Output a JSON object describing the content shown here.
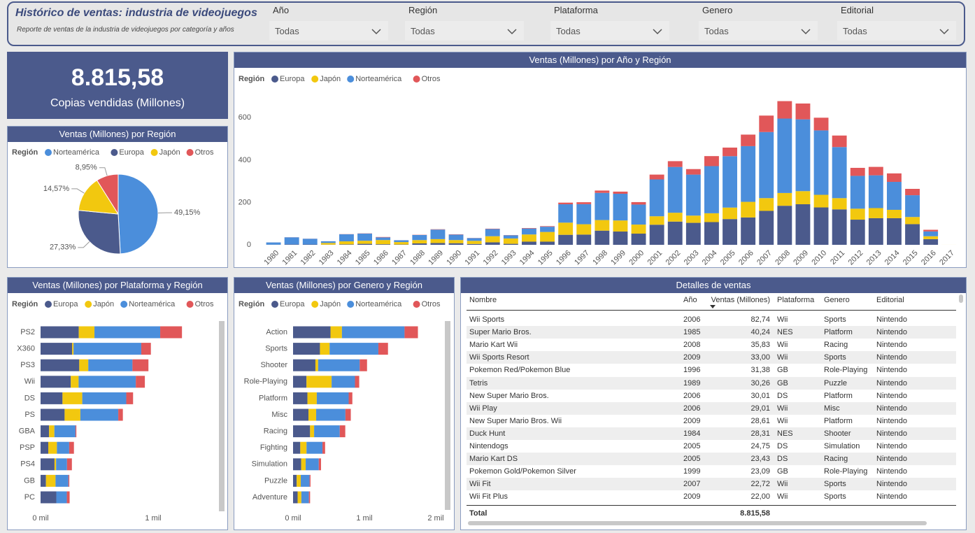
{
  "header": {
    "title": "Histórico de ventas: industria de videojuegos",
    "subtitle": "Reporte de ventas de la industria de videojuegos por categoría y años"
  },
  "filters": [
    {
      "label": "Año",
      "value": "Todas"
    },
    {
      "label": "Región",
      "value": "Todas"
    },
    {
      "label": "Plataforma",
      "value": "Todas"
    },
    {
      "label": "Genero",
      "value": "Todas"
    },
    {
      "label": "Editorial",
      "value": "Todas"
    }
  ],
  "kpi": {
    "value": "8.815,58",
    "label": "Copias vendidas (Millones)"
  },
  "chart_data": [
    {
      "type": "pie",
      "title": "Ventas (Millones) por Región",
      "legend_title": "Región",
      "categories": [
        "Norteamérica",
        "Europa",
        "Japón",
        "Otros"
      ],
      "values": [
        49.15,
        27.33,
        14.57,
        8.95
      ],
      "value_labels": [
        "49,15%",
        "27,33%",
        "14,57%",
        "8,95%"
      ],
      "colors": [
        "#4b8edb",
        "#4b5a8c",
        "#f2c80f",
        "#e15759"
      ]
    },
    {
      "type": "bar",
      "title": "Ventas (Millones) por Año y Región",
      "legend_title": "Región",
      "stacked": true,
      "grid": false,
      "categories": [
        "1980",
        "1981",
        "1982",
        "1983",
        "1984",
        "1985",
        "1986",
        "1987",
        "1988",
        "1989",
        "1990",
        "1991",
        "1992",
        "1993",
        "1994",
        "1995",
        "1996",
        "1997",
        "1998",
        "1999",
        "2000",
        "2001",
        "2002",
        "2003",
        "2004",
        "2005",
        "2006",
        "2007",
        "2008",
        "2009",
        "2010",
        "2011",
        "2012",
        "2013",
        "2014",
        "2015",
        "2016",
        "2017"
      ],
      "series": [
        {
          "name": "Europa",
          "color": "#4b5a8c",
          "values": [
            0.7,
            2.0,
            1.7,
            0.8,
            2.1,
            4.7,
            2.8,
            1.4,
            6.6,
            8.4,
            7.6,
            4.0,
            11.7,
            4.7,
            14.9,
            14.9,
            47.3,
            48.3,
            66.9,
            62.7,
            52.8,
            94.9,
            109.7,
            103.8,
            107.3,
            121.6,
            129.2,
            160.2,
            184.4,
            191.6,
            176.6,
            167.4,
            118.8,
            125.8,
            125.7,
            97.7,
            26.8,
            0
          ]
        },
        {
          "name": "Japón",
          "color": "#f2c80f",
          "values": [
            0,
            0,
            0,
            8.1,
            14.3,
            14.6,
            19.8,
            11.6,
            15.8,
            18.4,
            14.9,
            14.8,
            28.9,
            25.3,
            34.0,
            45.8,
            57.4,
            48.9,
            50.0,
            52.3,
            42.8,
            39.9,
            41.8,
            34.2,
            41.7,
            54.3,
            73.7,
            60.3,
            60.3,
            61.9,
            59.5,
            53.0,
            51.8,
            47.6,
            39.5,
            33.7,
            13.7,
            0.1
          ]
        },
        {
          "name": "Norteamérica",
          "color": "#4b8edb",
          "values": [
            10.6,
            33.4,
            26.9,
            7.8,
            33.3,
            33.7,
            12.5,
            8.5,
            23.9,
            45.2,
            25.5,
            12.8,
            33.9,
            15.1,
            28.2,
            24.8,
            86.8,
            94.8,
            128.4,
            126.1,
            94.5,
            174.0,
            216.2,
            193.6,
            222.6,
            242.6,
            263.1,
            312.1,
            351.4,
            338.9,
            304.2,
            241.2,
            155.0,
            154.8,
            132.0,
            102.8,
            22.7,
            0
          ]
        },
        {
          "name": "Otros",
          "color": "#e15759",
          "values": [
            0.1,
            0.3,
            0.3,
            0.1,
            0.7,
            0.9,
            1.9,
            0.2,
            1.0,
            1.5,
            1.4,
            0.7,
            1.7,
            0.9,
            2.2,
            2.6,
            7.7,
            9.1,
            11.0,
            10.1,
            11.6,
            22.8,
            27.3,
            26.0,
            47.3,
            40.6,
            54.4,
            77.6,
            82.4,
            74.8,
            59.9,
            54.4,
            37.8,
            39.8,
            40.0,
            30.0,
            7.8,
            0
          ]
        }
      ],
      "ylim": [
        0,
        720
      ],
      "yticks": [
        0,
        200,
        400,
        600
      ]
    },
    {
      "type": "barh",
      "title": "Ventas (Millones) por Plataforma y Región",
      "legend_title": "Región",
      "stacked": true,
      "categories": [
        "PS2",
        "X360",
        "PS3",
        "Wii",
        "DS",
        "PS",
        "GBA",
        "PSP",
        "PS4",
        "GB",
        "PC"
      ],
      "series": [
        {
          "name": "Europa",
          "color": "#4b5a8c",
          "values": [
            339.3,
            280.6,
            343.7,
            268.4,
            194.7,
            213.6,
            75.3,
            68.3,
            123.7,
            47.8,
            139.7
          ]
        },
        {
          "name": "Japón",
          "color": "#f2c80f",
          "values": [
            139.2,
            12.4,
            80.0,
            69.4,
            175.6,
            139.8,
            47.3,
            76.8,
            14.3,
            85.1,
            0.2
          ]
        },
        {
          "name": "Norteamérica",
          "color": "#4b8edb",
          "values": [
            583.8,
            601.1,
            392.3,
            507.7,
            390.7,
            336.5,
            187.5,
            109.0,
            96.8,
            114.3,
            93.3
          ]
        },
        {
          "name": "Otros",
          "color": "#e15759",
          "values": [
            193.4,
            85.5,
            141.9,
            80.6,
            60.5,
            40.9,
            7.7,
            42.2,
            43.4,
            8.2,
            24.9
          ]
        }
      ],
      "xlim": [
        0,
        1570
      ],
      "xticks": [
        {
          "value": 0,
          "label": "0 mil"
        },
        {
          "value": 1000,
          "label": "1 mil"
        }
      ]
    },
    {
      "type": "barh",
      "title": "Ventas (Millones) por Genero y Región",
      "legend_title": "Región",
      "stacked": true,
      "categories": [
        "Action",
        "Sports",
        "Shooter",
        "Role-Playing",
        "Platform",
        "Misc",
        "Racing",
        "Fighting",
        "Simulation",
        "Puzzle",
        "Adventure"
      ],
      "series": [
        {
          "name": "Europa",
          "color": "#4b5a8c",
          "values": [
            525.0,
            376.9,
            313.3,
            188.1,
            201.6,
            216.0,
            238.4,
            101.3,
            113.4,
            50.8,
            64.1
          ]
        },
        {
          "name": "Japón",
          "color": "#f2c80f",
          "values": [
            160.0,
            135.4,
            38.3,
            352.3,
            130.8,
            107.8,
            56.7,
            87.4,
            63.7,
            57.3,
            52.1
          ]
        },
        {
          "name": "Norteamérica",
          "color": "#4b8edb",
          "values": [
            877.8,
            683.4,
            582.6,
            327.3,
            447.1,
            410.2,
            359.4,
            223.6,
            183.3,
            123.8,
            105.8
          ]
        },
        {
          "name": "Otros",
          "color": "#e15759",
          "values": [
            187.4,
            135.0,
            102.7,
            59.6,
            51.6,
            75.3,
            77.3,
            36.7,
            31.5,
            12.6,
            16.8
          ]
        }
      ],
      "xlim": [
        0,
        2080
      ],
      "xticks": [
        {
          "value": 0,
          "label": "0 mil"
        },
        {
          "value": 1000,
          "label": "1 mil"
        },
        {
          "value": 2000,
          "label": "2 mil"
        }
      ]
    }
  ],
  "table": {
    "title": "Detalles de ventas",
    "columns": [
      "Nombre",
      "Año",
      "Ventas (Millones)",
      "Plataforma",
      "Genero",
      "Editorial"
    ],
    "rows": [
      [
        "Wii Sports",
        "2006",
        "82,74",
        "Wii",
        "Sports",
        "Nintendo"
      ],
      [
        "Super Mario Bros.",
        "1985",
        "40,24",
        "NES",
        "Platform",
        "Nintendo"
      ],
      [
        "Mario Kart Wii",
        "2008",
        "35,83",
        "Wii",
        "Racing",
        "Nintendo"
      ],
      [
        "Wii Sports Resort",
        "2009",
        "33,00",
        "Wii",
        "Sports",
        "Nintendo"
      ],
      [
        "Pokemon Red/Pokemon Blue",
        "1996",
        "31,38",
        "GB",
        "Role-Playing",
        "Nintendo"
      ],
      [
        "Tetris",
        "1989",
        "30,26",
        "GB",
        "Puzzle",
        "Nintendo"
      ],
      [
        "New Super Mario Bros.",
        "2006",
        "30,01",
        "DS",
        "Platform",
        "Nintendo"
      ],
      [
        "Wii Play",
        "2006",
        "29,01",
        "Wii",
        "Misc",
        "Nintendo"
      ],
      [
        "New Super Mario Bros. Wii",
        "2009",
        "28,61",
        "Wii",
        "Platform",
        "Nintendo"
      ],
      [
        "Duck Hunt",
        "1984",
        "28,31",
        "NES",
        "Shooter",
        "Nintendo"
      ],
      [
        "Nintendogs",
        "2005",
        "24,75",
        "DS",
        "Simulation",
        "Nintendo"
      ],
      [
        "Mario Kart DS",
        "2005",
        "23,43",
        "DS",
        "Racing",
        "Nintendo"
      ],
      [
        "Pokemon Gold/Pokemon Silver",
        "1999",
        "23,09",
        "GB",
        "Role-Playing",
        "Nintendo"
      ],
      [
        "Wii Fit",
        "2007",
        "22,72",
        "Wii",
        "Sports",
        "Nintendo"
      ],
      [
        "Wii Fit Plus",
        "2009",
        "22,00",
        "Wii",
        "Sports",
        "Nintendo"
      ]
    ],
    "total": [
      "Total",
      "8.815,58"
    ]
  }
}
